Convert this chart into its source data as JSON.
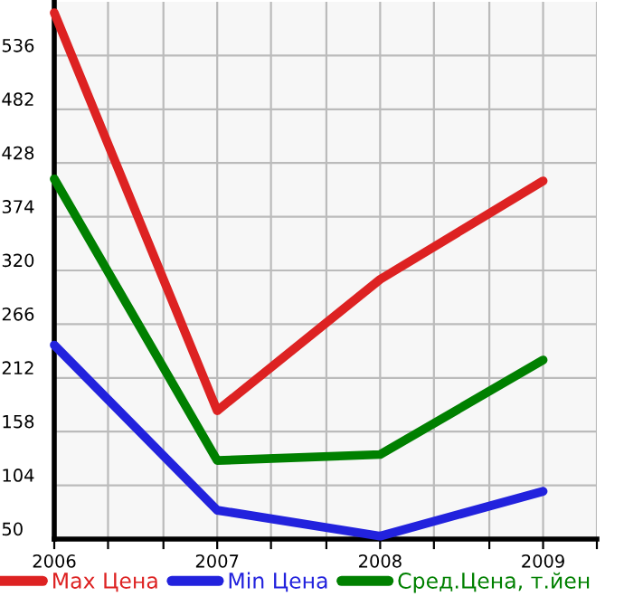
{
  "chart_data": {
    "type": "line",
    "x": [
      2006,
      2007,
      2008,
      2009
    ],
    "series": [
      {
        "name": "Max Цена",
        "color": "#dd2222",
        "values": [
          579,
          179,
          311,
          410
        ]
      },
      {
        "name": "Min Цена",
        "color": "#2222dd",
        "values": [
          245,
          79,
          53,
          98
        ]
      },
      {
        "name": "Сред.Цена, т.йен",
        "color": "#008000",
        "values": [
          412,
          129,
          135,
          230
        ]
      }
    ],
    "xlim": [
      2006,
      2009.33
    ],
    "xticks": [
      2006,
      {
        "value": 2006.33,
        "label": null
      },
      {
        "value": 2006.67,
        "label": null
      },
      2007,
      {
        "value": 2007.33,
        "label": null
      },
      {
        "value": 2007.67,
        "label": null
      },
      2008,
      {
        "value": 2008.33,
        "label": null
      },
      {
        "value": 2008.67,
        "label": null
      },
      2009,
      {
        "value": 2009.33,
        "label": null
      }
    ],
    "ylim": [
      50,
      590
    ],
    "yticks": [
      50,
      104,
      158,
      212,
      266,
      320,
      374,
      428,
      482,
      536
    ],
    "grid": true,
    "legend": "bottom",
    "marker": "none",
    "line_style": "solid"
  }
}
